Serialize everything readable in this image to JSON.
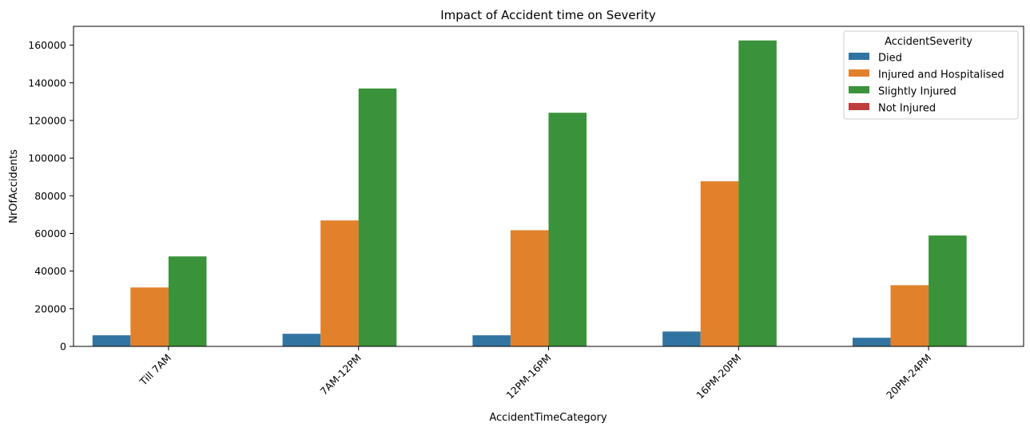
{
  "chart_data": {
    "type": "bar",
    "title": "Impact of Accident time on Severity",
    "xlabel": "AccidentTimeCategory",
    "ylabel": "NrOfAccidents",
    "categories": [
      "Till 7AM",
      "7AM-12PM",
      "12PM-16PM",
      "16PM-20PM",
      "20PM-24PM"
    ],
    "yticks": [
      0,
      20000,
      40000,
      60000,
      80000,
      100000,
      120000,
      140000,
      160000
    ],
    "ylim": [
      0,
      170000
    ],
    "grid": false,
    "legend": {
      "title": "AccidentSeverity",
      "placement": "top-right"
    },
    "series": [
      {
        "name": "Died",
        "color": "#3274a1",
        "values": [
          5900,
          6700,
          5900,
          7900,
          4600
        ]
      },
      {
        "name": "Injured and Hospitalised",
        "color": "#e1812c",
        "values": [
          31300,
          66900,
          61700,
          87700,
          32500
        ]
      },
      {
        "name": "Slightly Injured",
        "color": "#3a923a",
        "values": [
          47800,
          137000,
          124100,
          162500,
          58900
        ]
      },
      {
        "name": "Not Injured",
        "color": "#c03d3e",
        "values": [
          0,
          0,
          0,
          0,
          0
        ]
      }
    ]
  }
}
